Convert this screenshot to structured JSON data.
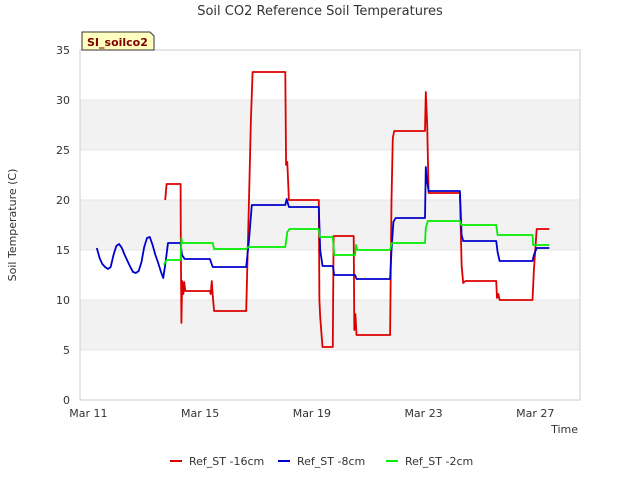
{
  "chart_data": {
    "type": "line",
    "title": "Soil CO2 Reference Soil Temperatures",
    "site_tag": "SI_soilco2",
    "xlabel": "Time",
    "ylabel": "Soil Temperature (C)",
    "x_unit": "days since Mar 11",
    "xlim": [
      -0.3,
      17.6
    ],
    "ylim": [
      0,
      35
    ],
    "x_ticks": [
      {
        "value": 0,
        "label": "Mar 11"
      },
      {
        "value": 4,
        "label": "Mar 15"
      },
      {
        "value": 8,
        "label": "Mar 19"
      },
      {
        "value": 12,
        "label": "Mar 23"
      },
      {
        "value": 16,
        "label": "Mar 27"
      }
    ],
    "y_ticks": [
      0,
      5,
      10,
      15,
      20,
      25,
      30,
      35
    ],
    "grid": "horizontal bands",
    "legend_position": "bottom",
    "series": [
      {
        "name": "Ref_ST -16cm",
        "color": "#dd0000",
        "points": [
          [
            2.75,
            20.0
          ],
          [
            2.8,
            21.6
          ],
          [
            3.3,
            21.6
          ],
          [
            3.31,
            16.0
          ],
          [
            3.33,
            7.7
          ],
          [
            3.36,
            11.9
          ],
          [
            3.4,
            10.6
          ],
          [
            3.43,
            11.8
          ],
          [
            3.47,
            10.9
          ],
          [
            4.35,
            10.9
          ],
          [
            4.38,
            10.6
          ],
          [
            4.42,
            11.9
          ],
          [
            4.45,
            10.5
          ],
          [
            4.5,
            8.9
          ],
          [
            5.65,
            8.9
          ],
          [
            5.75,
            20.0
          ],
          [
            5.82,
            28.0
          ],
          [
            5.88,
            32.8
          ],
          [
            7.05,
            32.8
          ],
          [
            7.08,
            23.5
          ],
          [
            7.12,
            23.8
          ],
          [
            7.18,
            20.0
          ],
          [
            8.25,
            20.0
          ],
          [
            8.27,
            10.0
          ],
          [
            8.3,
            8.3
          ],
          [
            8.38,
            5.3
          ],
          [
            8.75,
            5.3
          ],
          [
            8.78,
            16.4
          ],
          [
            9.5,
            16.4
          ],
          [
            9.52,
            7.0
          ],
          [
            9.56,
            8.6
          ],
          [
            9.6,
            6.5
          ],
          [
            10.8,
            6.5
          ],
          [
            10.85,
            20.0
          ],
          [
            10.9,
            26.2
          ],
          [
            10.95,
            26.9
          ],
          [
            12.05,
            26.9
          ],
          [
            12.08,
            30.8
          ],
          [
            12.13,
            27.5
          ],
          [
            12.18,
            20.7
          ],
          [
            13.3,
            20.7
          ],
          [
            13.36,
            13.5
          ],
          [
            13.42,
            11.7
          ],
          [
            13.5,
            11.9
          ],
          [
            14.6,
            11.9
          ],
          [
            14.63,
            10.2
          ],
          [
            14.68,
            10.6
          ],
          [
            14.72,
            10.0
          ],
          [
            15.9,
            10.0
          ],
          [
            15.95,
            13.0
          ],
          [
            16.05,
            17.1
          ],
          [
            16.5,
            17.1
          ]
        ]
      },
      {
        "name": "Ref_ST -8cm",
        "color": "#0000cc",
        "points": [
          [
            0.3,
            15.2
          ],
          [
            0.4,
            14.2
          ],
          [
            0.5,
            13.6
          ],
          [
            0.6,
            13.3
          ],
          [
            0.7,
            13.1
          ],
          [
            0.8,
            13.3
          ],
          [
            0.9,
            14.5
          ],
          [
            1.0,
            15.4
          ],
          [
            1.1,
            15.6
          ],
          [
            1.2,
            15.2
          ],
          [
            1.3,
            14.5
          ],
          [
            1.4,
            13.9
          ],
          [
            1.5,
            13.3
          ],
          [
            1.6,
            12.8
          ],
          [
            1.7,
            12.7
          ],
          [
            1.8,
            12.9
          ],
          [
            1.9,
            13.8
          ],
          [
            2.0,
            15.3
          ],
          [
            2.1,
            16.2
          ],
          [
            2.2,
            16.3
          ],
          [
            2.3,
            15.5
          ],
          [
            2.4,
            14.5
          ],
          [
            2.5,
            13.7
          ],
          [
            2.6,
            12.8
          ],
          [
            2.68,
            12.2
          ],
          [
            2.75,
            13.5
          ],
          [
            2.85,
            15.7
          ],
          [
            3.3,
            15.7
          ],
          [
            3.35,
            14.5
          ],
          [
            3.45,
            14.1
          ],
          [
            4.35,
            14.1
          ],
          [
            4.45,
            13.3
          ],
          [
            5.65,
            13.3
          ],
          [
            5.75,
            16.0
          ],
          [
            5.85,
            19.5
          ],
          [
            7.05,
            19.5
          ],
          [
            7.1,
            20.1
          ],
          [
            7.18,
            19.3
          ],
          [
            8.25,
            19.3
          ],
          [
            8.3,
            15.0
          ],
          [
            8.38,
            13.4
          ],
          [
            8.75,
            13.4
          ],
          [
            8.8,
            12.5
          ],
          [
            9.55,
            12.5
          ],
          [
            9.6,
            12.1
          ],
          [
            10.8,
            12.1
          ],
          [
            10.85,
            15.0
          ],
          [
            10.92,
            17.8
          ],
          [
            11.0,
            18.2
          ],
          [
            12.05,
            18.2
          ],
          [
            12.08,
            23.3
          ],
          [
            12.12,
            22.0
          ],
          [
            12.18,
            20.9
          ],
          [
            13.3,
            20.9
          ],
          [
            13.36,
            16.5
          ],
          [
            13.42,
            15.9
          ],
          [
            14.6,
            15.9
          ],
          [
            14.65,
            14.8
          ],
          [
            14.72,
            13.9
          ],
          [
            15.9,
            13.9
          ],
          [
            15.95,
            14.5
          ],
          [
            16.05,
            15.2
          ],
          [
            16.5,
            15.2
          ]
        ]
      },
      {
        "name": "Ref_ST -2cm",
        "color": "#00ee00",
        "points": [
          [
            2.7,
            13.5
          ],
          [
            2.8,
            14.0
          ],
          [
            3.3,
            14.0
          ],
          [
            3.33,
            16.2
          ],
          [
            3.36,
            15.7
          ],
          [
            4.45,
            15.7
          ],
          [
            4.5,
            15.1
          ],
          [
            5.65,
            15.1
          ],
          [
            5.72,
            15.3
          ],
          [
            7.05,
            15.3
          ],
          [
            7.12,
            16.8
          ],
          [
            7.2,
            17.1
          ],
          [
            8.25,
            17.1
          ],
          [
            8.28,
            16.3
          ],
          [
            8.75,
            16.3
          ],
          [
            8.8,
            14.5
          ],
          [
            9.55,
            14.5
          ],
          [
            9.58,
            15.5
          ],
          [
            9.62,
            15.0
          ],
          [
            10.8,
            15.0
          ],
          [
            10.85,
            15.7
          ],
          [
            12.05,
            15.7
          ],
          [
            12.08,
            17.2
          ],
          [
            12.15,
            17.9
          ],
          [
            13.3,
            17.9
          ],
          [
            13.35,
            17.5
          ],
          [
            14.6,
            17.5
          ],
          [
            14.65,
            16.5
          ],
          [
            15.9,
            16.5
          ],
          [
            15.92,
            15.5
          ],
          [
            16.5,
            15.5
          ]
        ]
      }
    ]
  }
}
